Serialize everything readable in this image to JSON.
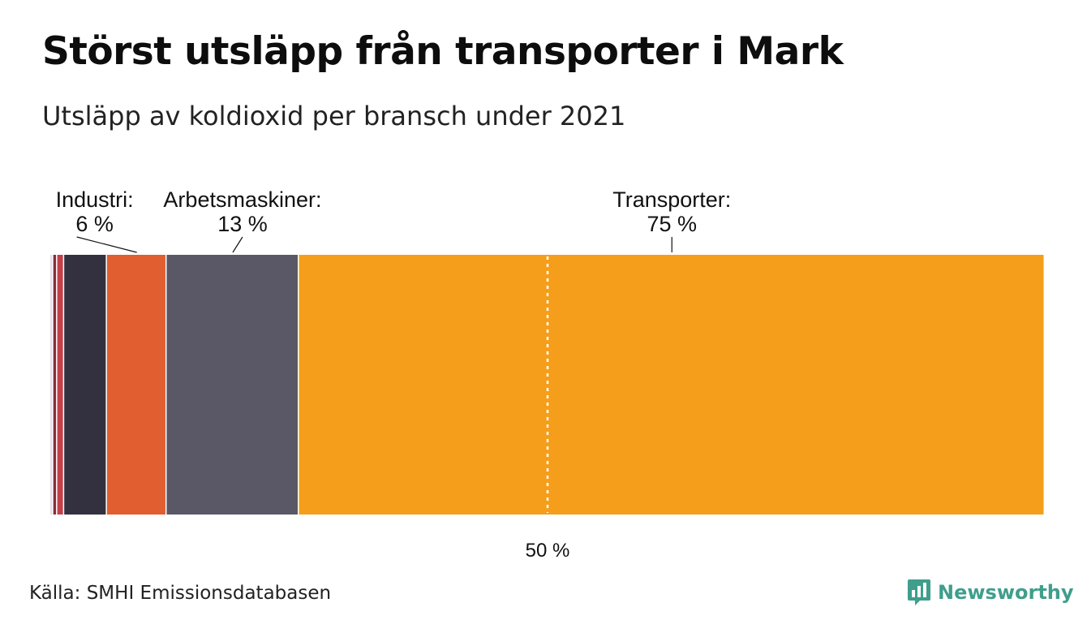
{
  "header": {
    "title": "Störst utsläpp från transporter i Mark",
    "subtitle": "Utsläpp av koldioxid per bransch under 2021"
  },
  "footer": {
    "source": "Källa: SMHI Emissionsdatabasen",
    "brand": "Newsworthy",
    "brand_color": "#3f9e8c",
    "brand_icon": "bar-chart-speech-bubble-icon"
  },
  "chart_data": {
    "type": "bar",
    "orientation": "horizontal",
    "stacked": true,
    "title": "Störst utsläpp från transporter i Mark",
    "subtitle": "Utsläpp av koldioxid per bransch under 2021",
    "unit": "%",
    "xlim": [
      0,
      100
    ],
    "reference_line": {
      "value": 50,
      "label": "50 %"
    },
    "segments": [
      {
        "value": 0.3,
        "color": "#e3dfe6"
      },
      {
        "value": 0.4,
        "color": "#8a2c3f"
      },
      {
        "value": 0.7,
        "color": "#c2404a"
      },
      {
        "value": 4.3,
        "color": "#33313f"
      },
      {
        "name": "Industri:",
        "label": "6 %",
        "value": 6,
        "color": "#e05e2f"
      },
      {
        "name": "Arbetsmaskiner:",
        "label": "13 %",
        "value": 13.3,
        "color": "#5a5866"
      },
      {
        "name": "Transporter:",
        "label": "75 %",
        "value": 75,
        "color": "#f59e1b"
      }
    ],
    "grid": false,
    "legend": "none (direct labels above bar)"
  }
}
